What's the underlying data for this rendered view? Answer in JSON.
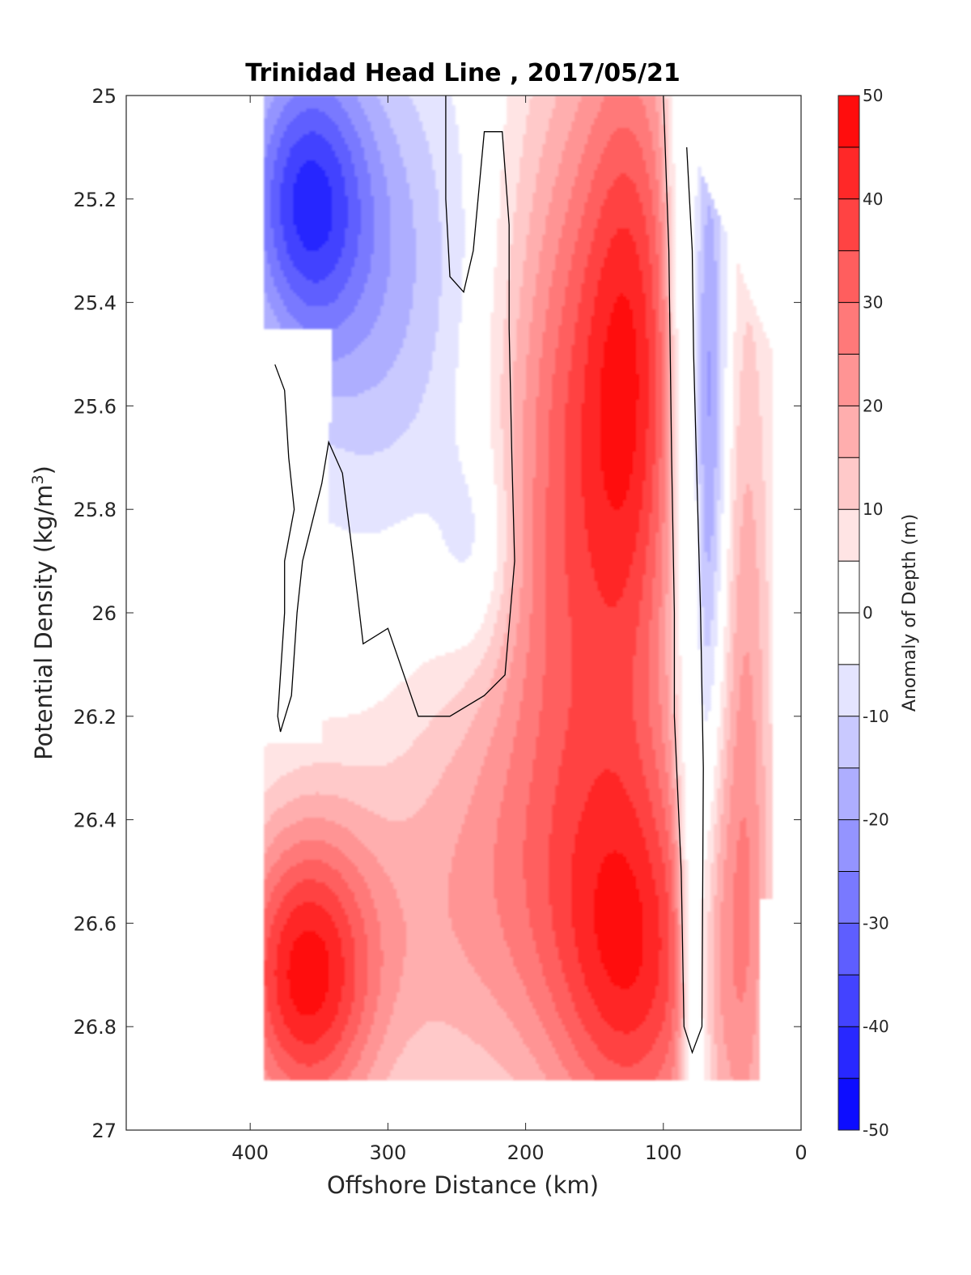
{
  "chart_data": {
    "type": "heatmap",
    "title": "Trinidad Head Line , 2017/05/21",
    "xlabel": "Offshore Distance (km)",
    "ylabel": "Potential Density (kg/m",
    "ylabel_sup": "3",
    "ylabel_close": ")",
    "colorbar_label": "Anomaly of Depth (m)",
    "xlim": [
      490,
      0
    ],
    "ylim": [
      25,
      27
    ],
    "x_reversed": true,
    "y_reversed": true,
    "x_ticks": [
      400,
      300,
      200,
      100,
      0
    ],
    "x_tick_labels": [
      "400",
      "300",
      "200",
      "100",
      "0"
    ],
    "y_ticks": [
      25,
      25.2,
      25.4,
      25.6,
      25.8,
      26,
      26.2,
      26.4,
      26.6,
      26.8,
      27
    ],
    "y_tick_labels": [
      "25",
      "25.2",
      "25.4",
      "25.6",
      "25.8",
      "26",
      "26.2",
      "26.4",
      "26.6",
      "26.8",
      "27"
    ],
    "colorbar": {
      "range": [
        -50,
        50
      ],
      "step": 5,
      "ticks": [
        -50,
        -40,
        -30,
        -20,
        -10,
        0,
        10,
        20,
        30,
        40,
        50
      ],
      "tick_labels": [
        "-50",
        "-40",
        "-30",
        "-20",
        "-10",
        "0",
        "10",
        "20",
        "30",
        "40",
        "50"
      ],
      "colormap": "blue-white-red"
    },
    "data_extent": {
      "x": [
        390,
        20
      ],
      "y": [
        25,
        26.9
      ]
    },
    "zero_contours": [
      [
        [
          382,
          25.52
        ],
        [
          375,
          25.57
        ],
        [
          372,
          25.7
        ],
        [
          368,
          25.8
        ],
        [
          375,
          25.9
        ],
        [
          375,
          26.0
        ],
        [
          380,
          26.2
        ],
        [
          378,
          26.23
        ],
        [
          370,
          26.16
        ],
        [
          366,
          26.0
        ],
        [
          362,
          25.9
        ],
        [
          348,
          25.75
        ],
        [
          343,
          25.67
        ],
        [
          333,
          25.73
        ],
        [
          325,
          25.9
        ],
        [
          318,
          26.06
        ],
        [
          300,
          26.03
        ],
        [
          278,
          26.2
        ],
        [
          255,
          26.2
        ],
        [
          230,
          26.16
        ],
        [
          215,
          26.12
        ],
        [
          208,
          25.9
        ],
        [
          210,
          25.7
        ],
        [
          212,
          25.45
        ],
        [
          212,
          25.25
        ],
        [
          217,
          25.07
        ],
        [
          230,
          25.07
        ],
        [
          238,
          25.3
        ],
        [
          245,
          25.38
        ],
        [
          255,
          25.35
        ],
        [
          258,
          25.2
        ],
        [
          258,
          25.0
        ]
      ],
      [
        [
          100,
          25.0
        ],
        [
          96,
          25.3
        ],
        [
          94,
          25.7
        ],
        [
          92,
          26.0
        ],
        [
          92,
          26.2
        ],
        [
          87,
          26.5
        ],
        [
          85,
          26.8
        ],
        [
          79,
          26.85
        ],
        [
          72,
          26.8
        ],
        [
          71,
          26.3
        ],
        [
          73,
          26.0
        ],
        [
          75,
          25.8
        ],
        [
          78,
          25.5
        ],
        [
          79,
          25.3
        ],
        [
          83,
          25.1
        ]
      ]
    ]
  }
}
